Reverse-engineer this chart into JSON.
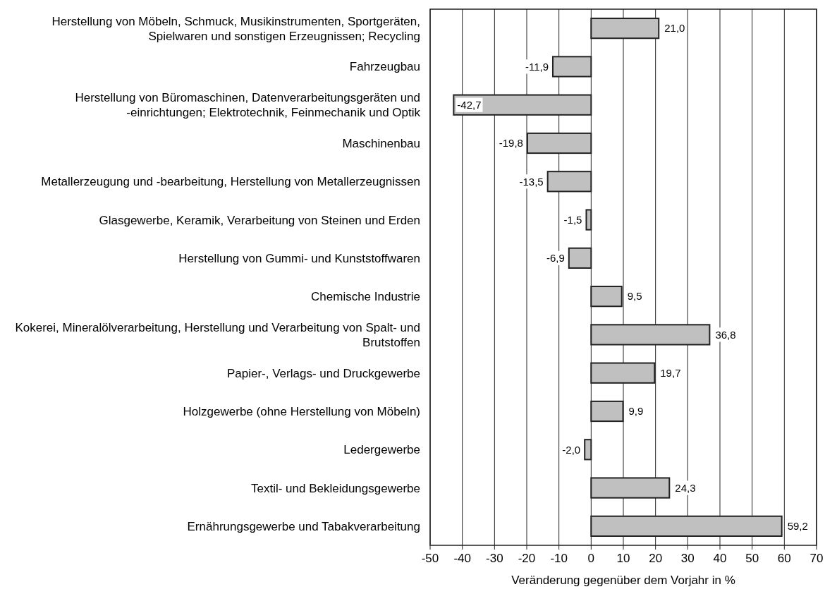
{
  "chart_data": {
    "type": "bar",
    "orientation": "horizontal",
    "xlabel": "Veränderung gegenüber dem Vorjahr in %",
    "categories": [
      "Herstellung von Möbeln, Schmuck, Musikinstrumenten, Sportgeräten, Spielwaren und sonstigen Erzeugnissen; Recycling",
      "Fahrzeugbau",
      "Herstellung von Büromaschinen, Datenverarbeitungsgeräten und -einrichtungen; Elektrotechnik, Feinmechanik und Optik",
      "Maschinenbau",
      "Metallerzeugung und -bearbeitung, Herstellung von Metallerzeugnissen",
      "Glasgewerbe, Keramik, Verarbeitung von Steinen und Erden",
      "Herstellung von Gummi- und Kunststoffwaren",
      "Chemische Industrie",
      "Kokerei, Mineralölverarbeitung, Herstellung und Verarbeitung von Spalt- und Brutstoffen",
      "Papier-, Verlags- und Druckgewerbe",
      "Holzgewerbe (ohne Herstellung von Möbeln)",
      "Ledergewerbe",
      "Textil- und Bekleidungsgewerbe",
      "Ernährungsgewerbe und Tabakverarbeitung"
    ],
    "values": [
      21.0,
      -11.9,
      -42.7,
      -19.8,
      -13.5,
      -1.5,
      -6.9,
      9.5,
      36.8,
      19.7,
      9.9,
      -2.0,
      24.3,
      59.2
    ],
    "value_labels": [
      "21,0",
      "-11,9",
      "-42,7",
      "-19,8",
      "-13,5",
      "-1,5",
      "-6,9",
      "9,5",
      "36,8",
      "19,7",
      "9,9",
      "-2,0",
      "24,3",
      "59,2"
    ],
    "color": "#c0c0c0",
    "xlim": [
      -50,
      70
    ],
    "xticks": [
      -50,
      -40,
      -30,
      -20,
      -10,
      0,
      10,
      20,
      30,
      40,
      50,
      60,
      70
    ],
    "grid": "x"
  }
}
